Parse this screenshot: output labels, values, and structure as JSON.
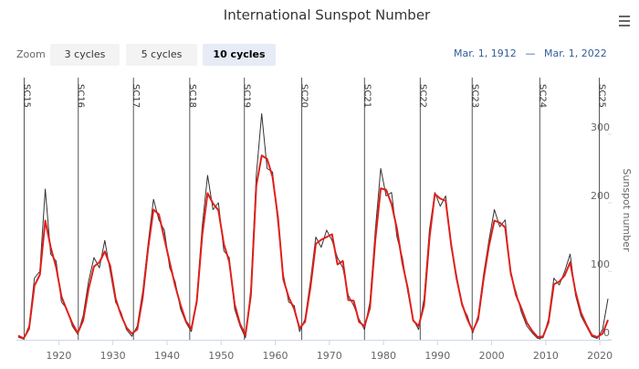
{
  "chart_data": {
    "type": "line",
    "title": "International Sunspot Number",
    "zoom_label": "Zoom",
    "buttons": [
      "3 cycles",
      "5 cycles",
      "10 cycles"
    ],
    "selected_button": 2,
    "range_from": "Mar. 1, 1912",
    "range_separator": "—",
    "range_to": "Mar. 1, 2022",
    "y_axis_label": "Sunspot number",
    "xlim": [
      1912.17,
      2022.17
    ],
    "ylim": [
      0,
      390
    ],
    "xticks": [
      1920,
      1930,
      1940,
      1950,
      1960,
      1970,
      1980,
      1990,
      2000,
      2010,
      2020
    ],
    "yticks": [
      0,
      100,
      200,
      300
    ],
    "cycles": [
      {
        "label": "SC15",
        "x": 1913.6
      },
      {
        "label": "SC16",
        "x": 1923.6
      },
      {
        "label": "SC17",
        "x": 1933.8
      },
      {
        "label": "SC18",
        "x": 1944.2
      },
      {
        "label": "SC19",
        "x": 1954.3
      },
      {
        "label": "SC20",
        "x": 1964.9
      },
      {
        "label": "SC21",
        "x": 1976.5
      },
      {
        "label": "SC22",
        "x": 1986.8
      },
      {
        "label": "SC23",
        "x": 1996.4
      },
      {
        "label": "SC24",
        "x": 2008.9
      },
      {
        "label": "SC25",
        "x": 2019.9
      }
    ],
    "x": [
      1912.5,
      1913.5,
      1914.5,
      1915.5,
      1916.5,
      1917.5,
      1918.5,
      1919.5,
      1920.5,
      1921.5,
      1922.5,
      1923.5,
      1924.5,
      1925.5,
      1926.5,
      1927.5,
      1928.5,
      1929.5,
      1930.5,
      1931.5,
      1932.5,
      1933.5,
      1934.5,
      1935.5,
      1936.5,
      1937.5,
      1938.5,
      1939.5,
      1940.5,
      1941.5,
      1942.5,
      1943.5,
      1944.5,
      1945.5,
      1946.5,
      1947.5,
      1948.5,
      1949.5,
      1950.5,
      1951.5,
      1952.5,
      1953.5,
      1954.5,
      1955.5,
      1956.5,
      1957.5,
      1958.5,
      1959.5,
      1960.5,
      1961.5,
      1962.5,
      1963.5,
      1964.5,
      1965.5,
      1966.5,
      1967.5,
      1968.5,
      1969.5,
      1970.5,
      1971.5,
      1972.5,
      1973.5,
      1974.5,
      1975.5,
      1976.5,
      1977.5,
      1978.5,
      1979.5,
      1980.5,
      1981.5,
      1982.5,
      1983.5,
      1984.5,
      1985.5,
      1986.5,
      1987.5,
      1988.5,
      1989.5,
      1990.5,
      1991.5,
      1992.5,
      1993.5,
      1994.5,
      1995.5,
      1996.5,
      1997.5,
      1998.5,
      1999.5,
      2000.5,
      2001.5,
      2002.5,
      2003.5,
      2004.5,
      2005.5,
      2006.5,
      2007.5,
      2008.5,
      2009.5,
      2010.5,
      2011.5,
      2012.5,
      2013.5,
      2014.5,
      2015.5,
      2016.5,
      2017.5,
      2018.5,
      2019.5,
      2020.5,
      2021.5
    ],
    "series": [
      {
        "color": "#333333",
        "width": 1,
        "values": [
          4,
          1,
          20,
          90,
          100,
          220,
          125,
          115,
          55,
          45,
          20,
          8,
          35,
          85,
          120,
          105,
          145,
          100,
          55,
          40,
          15,
          5,
          20,
          70,
          140,
          205,
          175,
          160,
          105,
          85,
          45,
          25,
          12,
          60,
          165,
          240,
          190,
          200,
          130,
          120,
          45,
          20,
          3,
          75,
          240,
          330,
          250,
          245,
          170,
          95,
          55,
          50,
          12,
          30,
          85,
          150,
          135,
          160,
          145,
          120,
          105,
          65,
          50,
          30,
          15,
          55,
          160,
          250,
          210,
          215,
          150,
          120,
          70,
          30,
          15,
          60,
          160,
          215,
          195,
          210,
          135,
          95,
          50,
          35,
          10,
          35,
          95,
          145,
          190,
          165,
          175,
          95,
          70,
          40,
          20,
          10,
          2,
          3,
          30,
          90,
          80,
          100,
          125,
          65,
          35,
          20,
          5,
          2,
          15,
          60
        ]
      },
      {
        "color": "#e0201b",
        "width": 2,
        "values": [
          6,
          2,
          16,
          79,
          95,
          174,
          135,
          106,
          63,
          43,
          24,
          10,
          28,
          74,
          107,
          113,
          129,
          108,
          60,
          36,
          18,
          9,
          15,
          61,
          133,
          190,
          183,
          148,
          113,
          79,
          51,
          27,
          16,
          56,
          152,
          214,
          199,
          189,
          140,
          114,
          52,
          23,
          7,
          65,
          225,
          269,
          264,
          238,
          179,
          88,
          62,
          45,
          17,
          26,
          76,
          140,
          146,
          150,
          154,
          110,
          115,
          58,
          57,
          26,
          20,
          46,
          146,
          221,
          219,
          198,
          162,
          112,
          75,
          28,
          20,
          50,
          148,
          213,
          206,
          203,
          140,
          90,
          53,
          30,
          13,
          30,
          88,
          137,
          174,
          171,
          164,
          99,
          65,
          46,
          25,
          13,
          4,
          5,
          25,
          81,
          85,
          94,
          113,
          70,
          40,
          22,
          7,
          4,
          9,
          29
        ]
      }
    ]
  }
}
